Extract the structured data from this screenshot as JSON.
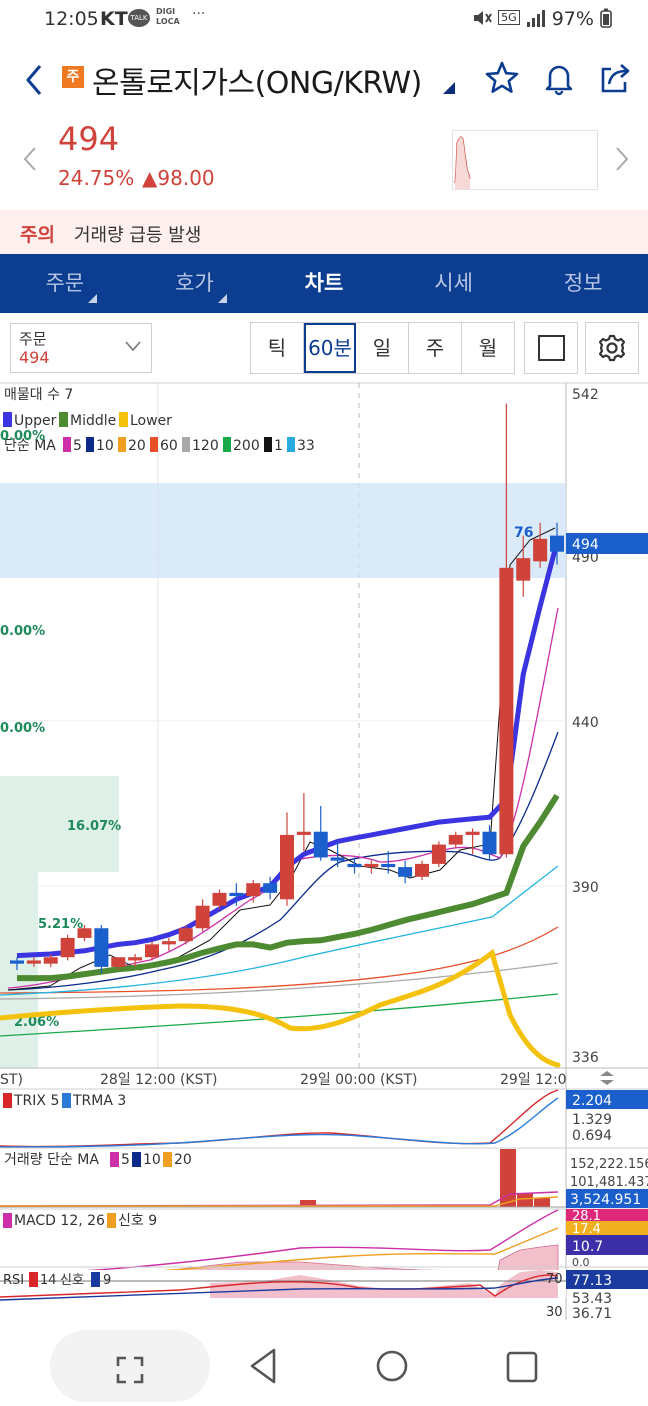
{
  "status": {
    "time": "12:05",
    "carrier": "KT",
    "talk": "TALK",
    "digi1": "DIGI",
    "digi2": "LOCA",
    "dots": "···",
    "battery": "97%",
    "network": "5G"
  },
  "header": {
    "badge": "주",
    "name": "온톨로지가스(ONG/KRW)"
  },
  "price": {
    "current": "494",
    "change_pct": "24.75%",
    "change_abs": "▲98.00",
    "up_color": "#d0433b"
  },
  "warning": {
    "tag": "주의",
    "text": "거래량 급등 발생"
  },
  "tabs": [
    {
      "label": "주문"
    },
    {
      "label": "호가"
    },
    {
      "label": "차트"
    },
    {
      "label": "시세"
    },
    {
      "label": "정보"
    }
  ],
  "controls": {
    "order_label": "주문",
    "order_value": "494",
    "periods": [
      "틱",
      "60분",
      "일",
      "주",
      "월"
    ],
    "active_period": "60분"
  },
  "chart_data": {
    "type": "line",
    "legends": {
      "volume_profile": "매물대 수 7",
      "bollinger": [
        "Upper",
        "Middle",
        "Lower"
      ],
      "ma_title": "단순 MA",
      "ma_periods": [
        "5",
        "10",
        "20",
        "60",
        "120",
        "200",
        "1",
        "33"
      ],
      "trix": [
        "TRIX 5",
        "TRMA 3"
      ],
      "volume_ma_title": "거래량 단순 MA",
      "volume_ma_periods": [
        "5",
        "10",
        "20"
      ],
      "macd": [
        "MACD 12, 26",
        "신호 9"
      ],
      "rsi": [
        "RSI",
        "14",
        "신호",
        "9"
      ]
    },
    "profile_pcts": [
      "0.00%",
      "0.00%",
      "0.00%",
      "16.07%",
      "5.21%",
      "2.06%"
    ],
    "y_ticks": [
      "542",
      "490",
      "440",
      "390",
      "336"
    ],
    "ylim": [
      336,
      542
    ],
    "x_ticks": [
      "ST)",
      "28일 12:00 (KST)",
      "29일 00:00 (KST)",
      "29일 12:0"
    ],
    "last_price_label": "494",
    "annotation": "76",
    "candles": [
      [
        366,
        367,
        363,
        365
      ],
      [
        365,
        367,
        364,
        366
      ],
      [
        365,
        368,
        364,
        367
      ],
      [
        367,
        374,
        366,
        373
      ],
      [
        373,
        377,
        372,
        376
      ],
      [
        376,
        377,
        362,
        364
      ],
      [
        364,
        367,
        363,
        367
      ],
      [
        366,
        368,
        364,
        367
      ],
      [
        367,
        372,
        366,
        371
      ],
      [
        371,
        373,
        369,
        372
      ],
      [
        372,
        377,
        371,
        376
      ],
      [
        376,
        385,
        375,
        383
      ],
      [
        383,
        388,
        382,
        387
      ],
      [
        387,
        390,
        383,
        386
      ],
      [
        386,
        391,
        384,
        390
      ],
      [
        390,
        392,
        385,
        387
      ],
      [
        385,
        412,
        383,
        405
      ],
      [
        405,
        418,
        400,
        406
      ],
      [
        406,
        414,
        397,
        398
      ],
      [
        398,
        403,
        395,
        397
      ],
      [
        396,
        398,
        393,
        395
      ],
      [
        395,
        397,
        393,
        396
      ],
      [
        396,
        400,
        393,
        395
      ],
      [
        395,
        397,
        390,
        392
      ],
      [
        392,
        397,
        391,
        396
      ],
      [
        396,
        403,
        395,
        402
      ],
      [
        402,
        406,
        401,
        405
      ],
      [
        405,
        407,
        399,
        406
      ],
      [
        406,
        408,
        397,
        399
      ],
      [
        399,
        539,
        398,
        488
      ],
      [
        484,
        498,
        479,
        491
      ],
      [
        490,
        502,
        488,
        497
      ],
      [
        498,
        502,
        489,
        493
      ]
    ],
    "bollinger_upper": [
      367.5,
      367.8,
      368,
      368.5,
      369,
      370,
      371,
      371.5,
      372.5,
      374,
      376,
      379,
      382,
      385,
      387,
      389,
      395,
      399,
      401,
      403,
      404,
      405,
      406,
      407,
      408,
      409,
      409.5,
      410,
      410.5,
      416,
      455,
      476,
      496
    ],
    "bollinger_lower": [
      353.5,
      353.2,
      353,
      353.5,
      354.5,
      355,
      355.5,
      356,
      356.5,
      357,
      357.5,
      357.8,
      357.5,
      357,
      355,
      351,
      348,
      345,
      343.5,
      343.5,
      344.5,
      346,
      348,
      350,
      351.5,
      353,
      355,
      357,
      360,
      358,
      348,
      342,
      338.5
    ],
    "trix": {
      "values": [
        "2.204",
        "1.329",
        "0.694"
      ]
    },
    "volume": {
      "values": [
        "152,222.156",
        "101,481.437",
        "3,524.951"
      ]
    },
    "macd": {
      "values": [
        "28.1",
        "17.4",
        "10.7",
        "0.0"
      ]
    },
    "rsi": {
      "values": [
        "77.13",
        "70",
        "53.43",
        "36.71",
        "30"
      ]
    },
    "colors": {
      "up": "#d0433b",
      "down": "#1a5fcc",
      "bollinger_upper": "#3a35e0",
      "bollinger_middle": "#4d8a32",
      "bollinger_lower": "#f4c20d",
      "ma5": "#cc2fa8",
      "ma10": "#0b2a8a",
      "ma20": "#22b5e0",
      "ma60": "#e8502a",
      "ma120": "#a8a8a8",
      "ma200": "#18a84a",
      "ma33": "#29a9e0",
      "profile_zone": "#cfe3f7",
      "profile_bar": "#dff0e8",
      "last_label_bg": "#1a5fcc"
    }
  }
}
